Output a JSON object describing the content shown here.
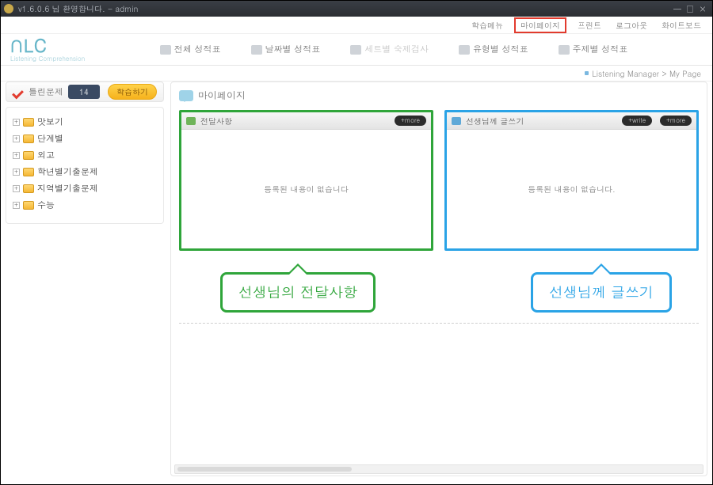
{
  "window": {
    "title": "v1.6.0.6 님 환영합니다. - admin",
    "min": "—",
    "max": "□",
    "close": "×"
  },
  "toplinks": {
    "items": [
      "학습메뉴",
      "마이페이지",
      "프린트",
      "로그아웃",
      "화이트보드"
    ],
    "highlighted_index": 1
  },
  "logo": {
    "main": "∩LC",
    "sub": "Listening Comprehension"
  },
  "tabs": {
    "items": [
      {
        "label": "전체 성적표",
        "disabled": false
      },
      {
        "label": "날짜별 성적표",
        "disabled": false
      },
      {
        "label": "세트별 숙제검사",
        "disabled": true
      },
      {
        "label": "유형별 성적표",
        "disabled": false
      },
      {
        "label": "주제별 성적표",
        "disabled": false
      }
    ]
  },
  "breadcrumb": {
    "text": "Listening Manager > My Page"
  },
  "sidebar": {
    "head": {
      "label": "틀린문제",
      "count": "14",
      "button": "학습하기"
    },
    "tree": [
      {
        "label": "맛보기"
      },
      {
        "label": "단계별"
      },
      {
        "label": "외고"
      },
      {
        "label": "학년별기출문제"
      },
      {
        "label": "지역별기출문제"
      },
      {
        "label": "수능"
      }
    ]
  },
  "content": {
    "title": "마이페이지",
    "cards": {
      "left": {
        "title": "전달사항",
        "buttons": [
          "+more"
        ],
        "empty": "등록된 내용이 없습니다",
        "border_color": "#2fa53a"
      },
      "right": {
        "title": "선생님께 글쓰기",
        "buttons": [
          "+write",
          "+more"
        ],
        "empty": "등록된 내용이 없습니다.",
        "border_color": "#2aa3e6"
      }
    },
    "callouts": {
      "left": "선생님의 전달사항",
      "right": "선생님께 글쓰기"
    }
  },
  "colors": {
    "accent_teal": "#67b6c9",
    "highlight_red": "#e23b2e",
    "green": "#2fa53a",
    "blue": "#2aa3e6",
    "titlebar_bg": "#2f3238"
  }
}
